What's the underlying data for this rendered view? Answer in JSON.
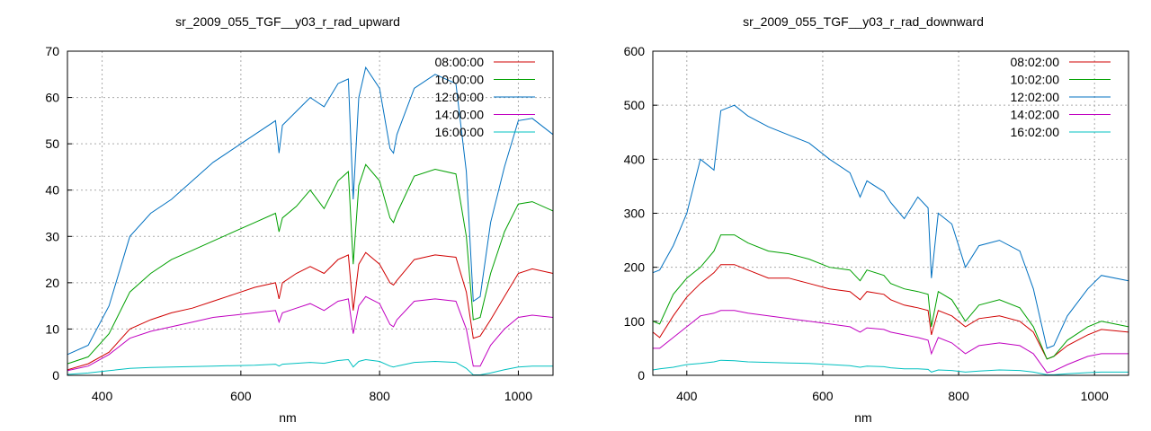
{
  "chart_data": [
    {
      "type": "line",
      "title": "sr_2009_055_TGF__y03_r_rad_upward",
      "xlabel": "nm",
      "ylabel": "",
      "xlim": [
        350,
        1050
      ],
      "ylim": [
        0,
        70
      ],
      "xticks": [
        400,
        600,
        800,
        1000
      ],
      "yticks": [
        0,
        10,
        20,
        30,
        40,
        50,
        60,
        70
      ],
      "grid": true,
      "legend_position": "top-right",
      "x": [
        350,
        380,
        410,
        440,
        470,
        500,
        530,
        560,
        590,
        620,
        650,
        655,
        660,
        680,
        700,
        720,
        740,
        755,
        762,
        770,
        780,
        800,
        815,
        820,
        825,
        850,
        880,
        910,
        925,
        935,
        945,
        960,
        980,
        1000,
        1020,
        1050
      ],
      "series": [
        {
          "name": "08:00:00",
          "color": "#d00000",
          "values": [
            1.2,
            2.5,
            5.0,
            10.0,
            12.0,
            13.5,
            14.5,
            16.0,
            17.5,
            19.0,
            20.0,
            16.5,
            20.0,
            22.0,
            23.5,
            22.0,
            25.0,
            26.0,
            14.0,
            24.0,
            26.5,
            24.0,
            20.0,
            19.5,
            20.5,
            25.0,
            26.0,
            25.5,
            18.0,
            8.0,
            8.5,
            12.0,
            17.0,
            22.0,
            23.0,
            22.0
          ]
        },
        {
          "name": "10:00:00",
          "color": "#00a000",
          "values": [
            2.5,
            4.0,
            9.0,
            18.0,
            22.0,
            25.0,
            27.0,
            29.0,
            31.0,
            33.0,
            35.0,
            31.0,
            34.0,
            36.5,
            40.0,
            36.0,
            42.0,
            44.0,
            24.0,
            41.0,
            45.5,
            42.0,
            34.0,
            33.0,
            35.0,
            43.0,
            44.5,
            43.5,
            30.0,
            12.0,
            12.5,
            22.0,
            31.0,
            37.0,
            37.5,
            35.5
          ]
        },
        {
          "name": "12:00:00",
          "color": "#0070c0",
          "values": [
            4.5,
            6.5,
            15.0,
            30.0,
            35.0,
            38.0,
            42.0,
            46.0,
            49.0,
            52.0,
            55.0,
            48.0,
            54.0,
            57.0,
            60.0,
            58.0,
            63.0,
            64.0,
            38.0,
            60.0,
            66.5,
            62.0,
            49.0,
            48.0,
            52.0,
            62.0,
            65.0,
            63.0,
            44.0,
            16.0,
            17.0,
            33.0,
            45.0,
            55.0,
            55.5,
            52.0
          ]
        },
        {
          "name": "14:00:00",
          "color": "#c000c0",
          "values": [
            1.0,
            2.0,
            4.5,
            8.0,
            9.5,
            10.5,
            11.5,
            12.5,
            13.0,
            13.5,
            14.0,
            11.5,
            13.5,
            14.5,
            15.5,
            14.0,
            16.0,
            16.5,
            9.0,
            15.0,
            17.0,
            15.5,
            11.0,
            10.5,
            12.0,
            16.0,
            16.5,
            16.0,
            10.0,
            2.0,
            2.0,
            6.5,
            10.0,
            12.5,
            13.0,
            12.5
          ]
        },
        {
          "name": "16:00:00",
          "color": "#00c0c0",
          "values": [
            0.2,
            0.5,
            1.0,
            1.5,
            1.7,
            1.8,
            1.9,
            2.0,
            2.1,
            2.2,
            2.4,
            2.0,
            2.4,
            2.6,
            2.8,
            2.6,
            3.2,
            3.4,
            1.8,
            3.0,
            3.4,
            3.0,
            2.0,
            1.8,
            2.0,
            2.8,
            3.0,
            2.8,
            1.5,
            0.1,
            0.1,
            0.5,
            1.2,
            1.8,
            2.0,
            2.0
          ]
        }
      ]
    },
    {
      "type": "line",
      "title": "sr_2009_055_TGF__y03_r_rad_downward",
      "xlabel": "nm",
      "ylabel": "",
      "xlim": [
        350,
        1050
      ],
      "ylim": [
        0,
        600
      ],
      "xticks": [
        400,
        600,
        800,
        1000
      ],
      "yticks": [
        0,
        100,
        200,
        300,
        400,
        500,
        600
      ],
      "grid": true,
      "legend_position": "top-right",
      "x": [
        350,
        360,
        380,
        400,
        420,
        440,
        450,
        470,
        490,
        520,
        550,
        580,
        610,
        640,
        655,
        665,
        690,
        700,
        720,
        740,
        755,
        760,
        770,
        790,
        810,
        830,
        860,
        890,
        910,
        930,
        940,
        960,
        990,
        1010,
        1050
      ],
      "series": [
        {
          "name": "08:02:00",
          "color": "#d00000",
          "values": [
            80,
            70,
            110,
            145,
            170,
            190,
            205,
            205,
            195,
            180,
            180,
            170,
            160,
            155,
            140,
            155,
            150,
            140,
            130,
            125,
            120,
            75,
            120,
            110,
            90,
            105,
            110,
            100,
            80,
            30,
            35,
            55,
            75,
            85,
            80
          ]
        },
        {
          "name": "10:02:00",
          "color": "#00a000",
          "values": [
            100,
            95,
            150,
            180,
            200,
            230,
            260,
            260,
            245,
            230,
            225,
            215,
            200,
            195,
            175,
            195,
            185,
            170,
            160,
            155,
            150,
            90,
            155,
            140,
            100,
            130,
            140,
            125,
            90,
            30,
            35,
            65,
            90,
            100,
            90
          ]
        },
        {
          "name": "12:02:00",
          "color": "#0070c0",
          "values": [
            190,
            195,
            240,
            300,
            400,
            380,
            490,
            500,
            480,
            460,
            445,
            430,
            400,
            375,
            330,
            360,
            340,
            320,
            290,
            330,
            310,
            180,
            300,
            280,
            200,
            240,
            250,
            230,
            160,
            50,
            55,
            110,
            160,
            185,
            175
          ]
        },
        {
          "name": "14:02:00",
          "color": "#c000c0",
          "values": [
            50,
            50,
            70,
            90,
            110,
            115,
            120,
            120,
            115,
            110,
            105,
            100,
            95,
            90,
            80,
            88,
            85,
            80,
            75,
            70,
            65,
            40,
            70,
            60,
            40,
            55,
            60,
            55,
            40,
            5,
            8,
            20,
            35,
            40,
            40
          ]
        },
        {
          "name": "16:02:00",
          "color": "#00c0c0",
          "values": [
            10,
            12,
            15,
            20,
            22,
            25,
            28,
            27,
            25,
            24,
            23,
            22,
            20,
            18,
            15,
            17,
            16,
            14,
            12,
            12,
            11,
            6,
            10,
            9,
            6,
            8,
            10,
            9,
            6,
            1,
            1,
            3,
            5,
            6,
            6
          ]
        }
      ]
    }
  ]
}
